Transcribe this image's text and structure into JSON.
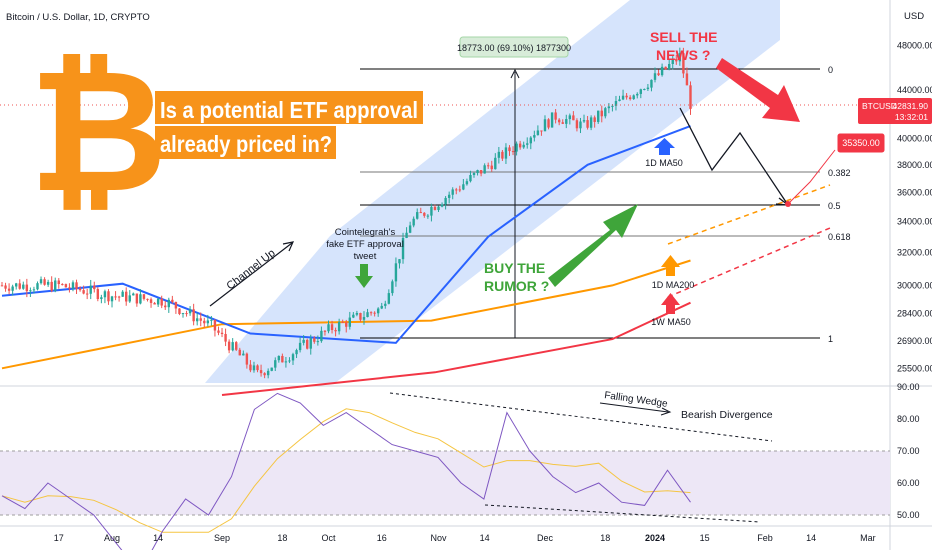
{
  "header": {
    "symbol_title": "Bitcoin / U.S. Dollar, 1D, CRYPTO",
    "currency": "USD"
  },
  "headline": {
    "line1": "Is a potential ETF approval",
    "line2": "already priced in?"
  },
  "annotations": {
    "measure_label": "18773.00 (69.10%) 1877300",
    "sell_news_1": "SELL THE",
    "sell_news_2": "NEWS ?",
    "buy_rumor_1": "BUY THE",
    "buy_rumor_2": "RUMOR ?",
    "channel_up": "Channel Up",
    "cointelegraph_1": "Cointelegrah's",
    "cointelegraph_2": "fake ETF approval",
    "cointelegraph_3": "tweet",
    "ma50_1d": "1D MA50",
    "ma200_1d": "1D MA200",
    "ma50_1w": "1W MA50",
    "falling_wedge": "Falling Wedge",
    "bearish_divergence": "Bearish Divergence"
  },
  "fib_levels": [
    "0",
    "0.382",
    "0.5",
    "0.618",
    "1"
  ],
  "price_labels": {
    "last_name": "BTCUSD",
    "last_price": "42831.90",
    "countdown": "13:32:01",
    "target": "35350.00"
  },
  "colors": {
    "up": "#26a69a",
    "down": "#ef5350",
    "ma50": "#2962ff",
    "ma200": "#ff9800",
    "ma50w": "#f23645",
    "channel": "#bbd2fa",
    "bitcoin": "#f7931a",
    "green_arrow": "#3fa53a",
    "red_arrow": "#f23645",
    "rsi": "#7e57c2",
    "rsi_ma": "#f5c542",
    "rsi_band": "#ede7f6"
  },
  "icons": {
    "logo": "bitcoin-logo-icon"
  },
  "chart_data": {
    "type": "candlestick",
    "title": "Bitcoin / U.S. Dollar, 1D, CRYPTO",
    "price_axis": {
      "scale": "log",
      "ticks": [
        "48000.00",
        "44000.00",
        "40000.00",
        "38000.00",
        "36000.00",
        "34000.00",
        "32000.00",
        "30000.00",
        "28400.00",
        "26900.00",
        "25500.00"
      ],
      "range": [
        24000,
        52000
      ]
    },
    "x_axis": {
      "ticks": [
        "17",
        "Aug",
        "14",
        "Sep",
        "18",
        "Oct",
        "16",
        "Nov",
        "14",
        "Dec",
        "18",
        "2024",
        "15",
        "Feb",
        "14",
        "Mar"
      ]
    },
    "last_price": 42831.9,
    "target_price": 35350.0,
    "measured_move": {
      "from": 26550,
      "to": 45323,
      "change": 18773,
      "percent": 69.1
    },
    "series": [
      {
        "name": "Price",
        "dates": [
          "2023-07-17",
          "2023-08-01",
          "2023-08-16",
          "2023-08-29",
          "2023-09-11",
          "2023-10-02",
          "2023-10-16",
          "2023-10-24",
          "2023-11-09",
          "2023-12-04",
          "2023-12-12",
          "2024-01-02",
          "2024-01-08",
          "2024-01-11"
        ],
        "closes": [
          30000,
          29400,
          29100,
          27700,
          25200,
          27600,
          28700,
          33900,
          36800,
          41800,
          41000,
          45300,
          47000,
          42831.9
        ]
      },
      {
        "name": "1D MA50",
        "dates": [
          "2023-07-01",
          "2023-08-04",
          "2023-09-09",
          "2023-10-20",
          "2023-11-15",
          "2023-12-13",
          "2024-01-11"
        ],
        "values": [
          29400,
          30100,
          27300,
          26800,
          33000,
          38000,
          41000
        ]
      },
      {
        "name": "1D MA200",
        "dates": [
          "2023-07-01",
          "2023-09-01",
          "2023-10-30",
          "2023-12-20",
          "2024-01-11"
        ],
        "values": [
          25500,
          27800,
          28000,
          30000,
          31500
        ]
      },
      {
        "name": "1W MA50",
        "dates": [
          "2023-09-01",
          "2023-10-31",
          "2023-12-20",
          "2024-01-11"
        ],
        "values": [
          24200,
          25300,
          27000,
          29000
        ]
      }
    ],
    "fib_retracement": [
      {
        "level": "0",
        "price": 45400
      },
      {
        "level": "0.382",
        "price": 37400
      },
      {
        "level": "0.5",
        "price": 35400
      },
      {
        "level": "0.618",
        "price": 33400
      },
      {
        "level": "1",
        "price": 26900
      }
    ],
    "rsi": {
      "ticks": [
        "90.00",
        "80.00",
        "70.00",
        "60.00",
        "50.00"
      ],
      "overbought": 70,
      "oversold": 30,
      "values": [
        56,
        52,
        60,
        55,
        50,
        41,
        32,
        45,
        55,
        50,
        62,
        83,
        88,
        85,
        78,
        82,
        77,
        72,
        70,
        68,
        60,
        55,
        82,
        70,
        62,
        57,
        60,
        54,
        53,
        64,
        54
      ]
    }
  }
}
